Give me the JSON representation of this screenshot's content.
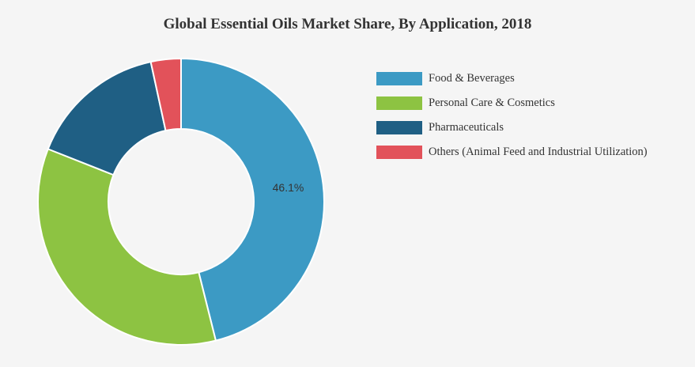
{
  "chart_data": {
    "type": "pie",
    "title": "Global Essential Oils Market Share, By Application, 2018",
    "donut": true,
    "legend_position": "right",
    "slices": [
      {
        "label": "Food & Beverages",
        "value": 46.1,
        "color": "#3c9ac4",
        "data_label": "46.1%"
      },
      {
        "label": "Personal Care & Cosmetics",
        "value": 34.9,
        "color": "#8dc342",
        "data_label": ""
      },
      {
        "label": "Pharmaceuticals",
        "value": 15.6,
        "color": "#1f5f84",
        "data_label": ""
      },
      {
        "label": "Others (Animal Feed and Industrial Utilization)",
        "value": 3.4,
        "color": "#e2525a",
        "data_label": ""
      }
    ]
  }
}
